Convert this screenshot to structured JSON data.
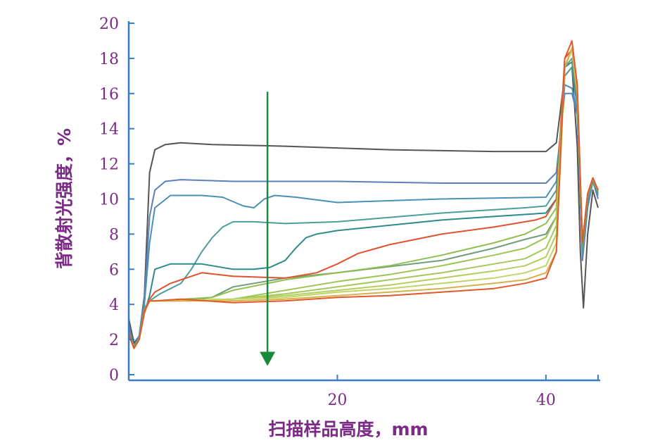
{
  "chart_data": {
    "type": "line",
    "title": "",
    "xlabel": "扫描样品高度，mm",
    "ylabel": "背散射光强度，%",
    "xlim": [
      0,
      45
    ],
    "ylim": [
      0,
      20
    ],
    "x_ticks": [
      "20",
      "40"
    ],
    "y_ticks": [
      "0",
      "2",
      "4",
      "6",
      "8",
      "10",
      "12",
      "14",
      "16",
      "18",
      "20"
    ],
    "grid": false,
    "legend": "none",
    "colors": {
      "axis": "#3b7bbf",
      "tick_text": "#7b2a86",
      "label_text": "#7b2a86",
      "arrow": "#1a8a3a"
    },
    "annotations": [
      {
        "type": "arrow",
        "x": 13.3,
        "y_from": 16.1,
        "y_to": 0.5,
        "direction": "down"
      }
    ],
    "series": [
      {
        "color": "#555555",
        "x": [
          0.0,
          0.5,
          1.0,
          1.5,
          2.0,
          2.5,
          3.5,
          5.0,
          8.0,
          15.0,
          25.0,
          35.0,
          40.0,
          41.0,
          41.8,
          42.5,
          43.0,
          43.3,
          43.6,
          44.0,
          44.5,
          45.0
        ],
        "y": [
          3.2,
          1.8,
          2.2,
          4.5,
          11.5,
          12.8,
          13.1,
          13.2,
          13.1,
          13.0,
          12.8,
          12.7,
          12.7,
          13.2,
          17.0,
          17.5,
          13.0,
          7.0,
          3.8,
          8.0,
          10.5,
          9.5
        ]
      },
      {
        "color": "#5d7fb8",
        "x": [
          0.0,
          0.5,
          1.0,
          1.5,
          2.0,
          2.5,
          3.5,
          5.0,
          10.0,
          20.0,
          30.0,
          40.0,
          41.0,
          41.8,
          42.5,
          43.0,
          43.5,
          44.0,
          44.5,
          45.0
        ],
        "y": [
          2.8,
          1.6,
          2.2,
          4.3,
          9.0,
          10.5,
          11.0,
          11.1,
          11.0,
          11.0,
          10.9,
          10.9,
          11.5,
          16.0,
          16.0,
          14.8,
          6.5,
          9.5,
          11.0,
          10.0
        ]
      },
      {
        "color": "#4a8fb5",
        "x": [
          0.0,
          0.5,
          1.0,
          1.5,
          2.0,
          2.5,
          4.0,
          7.0,
          9.0,
          11.0,
          12.0,
          13.0,
          14.0,
          16.0,
          20.0,
          30.0,
          40.0,
          41.0,
          41.8,
          42.5,
          43.0,
          43.5,
          44.0,
          44.5,
          45.0
        ],
        "y": [
          2.6,
          1.6,
          2.2,
          4.0,
          7.5,
          9.5,
          10.2,
          10.2,
          10.1,
          9.6,
          9.5,
          10.0,
          10.2,
          10.1,
          9.8,
          10.0,
          10.1,
          11.0,
          16.5,
          16.3,
          15.0,
          6.8,
          9.8,
          11.0,
          10.2
        ]
      },
      {
        "color": "#4b9e9a",
        "x": [
          0.0,
          0.5,
          1.0,
          1.5,
          2.0,
          3.0,
          5.0,
          6.0,
          7.0,
          8.0,
          9.0,
          10.0,
          12.0,
          15.0,
          20.0,
          30.0,
          38.0,
          40.0,
          41.0,
          41.8,
          42.5,
          43.0,
          43.5,
          44.0,
          44.5,
          45.0
        ],
        "y": [
          2.5,
          1.6,
          2.2,
          3.8,
          4.2,
          4.6,
          5.2,
          6.0,
          7.0,
          7.8,
          8.4,
          8.7,
          8.7,
          8.6,
          8.7,
          9.2,
          9.5,
          9.6,
          10.5,
          17.0,
          17.5,
          15.2,
          7.0,
          10.0,
          11.0,
          10.3
        ]
      },
      {
        "color": "#2e8b8b",
        "x": [
          0.0,
          0.5,
          1.0,
          1.5,
          2.0,
          2.5,
          4.0,
          7.0,
          10.0,
          12.0,
          13.5,
          15.0,
          16.0,
          17.0,
          18.0,
          20.0,
          25.0,
          30.0,
          35.0,
          40.0,
          41.0,
          41.8,
          42.5,
          43.0,
          43.5,
          44.0,
          44.5,
          45.0
        ],
        "y": [
          2.4,
          1.6,
          2.0,
          3.5,
          4.5,
          6.0,
          6.3,
          6.3,
          6.0,
          6.0,
          6.1,
          6.5,
          7.2,
          7.8,
          8.0,
          8.2,
          8.5,
          8.8,
          9.0,
          9.2,
          10.0,
          17.5,
          17.8,
          15.5,
          7.2,
          10.2,
          11.0,
          10.4
        ]
      },
      {
        "color": "#6f9e7a",
        "x": [
          0.0,
          0.5,
          1.0,
          1.5,
          2.0,
          2.5,
          5.0,
          8.0,
          10.0,
          15.0,
          20.0,
          30.0,
          35.0,
          38.0,
          40.0,
          41.0,
          41.8,
          42.5,
          43.0,
          43.5,
          44.0,
          44.5,
          45.0
        ],
        "y": [
          2.4,
          1.6,
          2.0,
          3.8,
          4.2,
          4.2,
          4.2,
          4.4,
          5.0,
          5.5,
          5.8,
          6.5,
          7.2,
          7.7,
          8.0,
          9.0,
          17.5,
          18.0,
          15.8,
          7.2,
          10.2,
          11.0,
          10.4
        ]
      },
      {
        "color": "#e0522f",
        "x": [
          0.0,
          0.5,
          1.0,
          1.5,
          2.0,
          2.5,
          4.0,
          6.0,
          7.0,
          10.0,
          15.0,
          18.0,
          20.0,
          22.0,
          25.0,
          30.0,
          35.0,
          39.0,
          40.0,
          41.0,
          41.8,
          42.5,
          43.0,
          43.5,
          44.0,
          44.5,
          45.0
        ],
        "y": [
          2.4,
          1.5,
          2.0,
          3.5,
          4.3,
          4.7,
          5.2,
          5.6,
          5.8,
          5.6,
          5.5,
          5.8,
          6.3,
          6.9,
          7.4,
          8.0,
          8.4,
          8.8,
          9.0,
          10.0,
          18.0,
          18.5,
          16.0,
          7.5,
          10.3,
          11.2,
          10.5
        ]
      },
      {
        "color": "#8fbf4f",
        "x": [
          0.0,
          0.5,
          1.0,
          1.5,
          2.0,
          2.5,
          8.0,
          10.0,
          15.0,
          20.0,
          25.0,
          30.0,
          35.0,
          38.0,
          40.0,
          41.0,
          41.8,
          42.5,
          43.0,
          43.5,
          44.0,
          44.5,
          45.0
        ],
        "y": [
          2.3,
          1.5,
          2.0,
          3.6,
          4.2,
          4.2,
          4.4,
          4.8,
          5.4,
          5.8,
          6.2,
          6.8,
          7.5,
          8.0,
          8.6,
          9.5,
          17.5,
          18.5,
          16.0,
          7.5,
          10.3,
          11.2,
          10.5
        ]
      },
      {
        "color": "#9bc553",
        "x": [
          0.0,
          0.5,
          1.0,
          1.5,
          2.0,
          2.5,
          10.0,
          15.0,
          20.0,
          25.0,
          30.0,
          35.0,
          38.0,
          40.0,
          41.0,
          41.8,
          42.5,
          43.0,
          43.5,
          44.0,
          44.5,
          45.0
        ],
        "y": [
          2.3,
          1.5,
          2.0,
          3.6,
          4.2,
          4.2,
          4.3,
          4.8,
          5.3,
          5.7,
          6.2,
          6.8,
          7.2,
          7.8,
          9.0,
          17.5,
          18.5,
          16.0,
          7.5,
          10.3,
          11.2,
          10.5
        ]
      },
      {
        "color": "#a3c95a",
        "x": [
          0.0,
          0.5,
          1.0,
          1.5,
          2.0,
          2.5,
          10.0,
          15.0,
          20.0,
          25.0,
          30.0,
          35.0,
          38.0,
          40.0,
          41.0,
          41.8,
          42.5,
          43.0,
          43.5,
          44.0,
          44.5,
          45.0
        ],
        "y": [
          2.3,
          1.5,
          2.0,
          3.6,
          4.2,
          4.2,
          4.3,
          4.6,
          5.0,
          5.4,
          5.8,
          6.3,
          6.6,
          7.2,
          8.5,
          17.5,
          18.5,
          16.0,
          7.5,
          10.3,
          11.2,
          10.5
        ]
      },
      {
        "color": "#b4cf5e",
        "x": [
          0.0,
          0.5,
          1.0,
          1.5,
          2.0,
          2.5,
          10.0,
          15.0,
          20.0,
          25.0,
          30.0,
          35.0,
          38.0,
          40.0,
          41.0,
          41.8,
          42.5,
          43.0,
          43.5,
          44.0,
          44.5,
          45.0
        ],
        "y": [
          2.3,
          1.5,
          2.0,
          3.6,
          4.2,
          4.2,
          4.3,
          4.5,
          4.8,
          5.1,
          5.5,
          5.9,
          6.2,
          6.7,
          8.0,
          17.5,
          18.5,
          16.0,
          7.5,
          10.3,
          11.2,
          10.5
        ]
      },
      {
        "color": "#c0d468",
        "x": [
          0.0,
          0.5,
          1.0,
          1.5,
          2.0,
          2.5,
          10.0,
          15.0,
          20.0,
          25.0,
          30.0,
          35.0,
          38.0,
          40.0,
          41.0,
          41.8,
          42.5,
          43.0,
          43.5,
          44.0,
          44.5,
          45.0
        ],
        "y": [
          2.3,
          1.5,
          2.0,
          3.6,
          4.2,
          4.2,
          4.3,
          4.4,
          4.7,
          4.9,
          5.2,
          5.5,
          5.8,
          6.2,
          7.5,
          17.5,
          18.5,
          16.0,
          7.5,
          10.3,
          11.2,
          10.5
        ]
      },
      {
        "color": "#d6b04a",
        "x": [
          0.0,
          0.5,
          1.0,
          1.5,
          2.0,
          2.5,
          10.0,
          15.0,
          20.0,
          25.0,
          30.0,
          35.0,
          38.0,
          40.0,
          41.0,
          41.8,
          42.5,
          43.0,
          43.5,
          44.0,
          44.5,
          45.0
        ],
        "y": [
          2.3,
          1.5,
          2.0,
          3.6,
          4.2,
          4.2,
          4.2,
          4.3,
          4.5,
          4.7,
          4.9,
          5.2,
          5.4,
          5.8,
          7.0,
          17.5,
          18.6,
          16.0,
          7.5,
          10.3,
          11.2,
          10.5
        ]
      },
      {
        "color": "#e2582b",
        "x": [
          0.0,
          0.5,
          1.0,
          1.5,
          2.0,
          2.5,
          5.0,
          10.0,
          15.0,
          20.0,
          25.0,
          30.0,
          35.0,
          38.0,
          40.0,
          41.0,
          41.8,
          42.5,
          43.0,
          43.5,
          44.0,
          44.5,
          45.0
        ],
        "y": [
          2.3,
          1.5,
          2.0,
          3.6,
          4.2,
          4.2,
          4.3,
          4.1,
          4.2,
          4.4,
          4.5,
          4.7,
          4.9,
          5.2,
          5.5,
          7.0,
          18.0,
          19.0,
          16.5,
          7.5,
          10.3,
          11.2,
          10.5
        ]
      }
    ]
  }
}
